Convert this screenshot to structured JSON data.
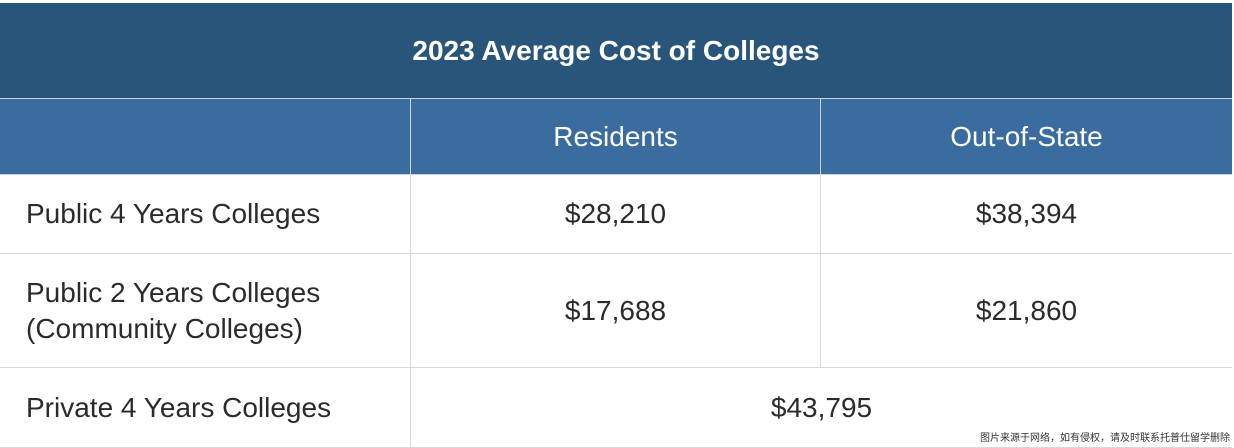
{
  "title": "2023 Average Cost of Colleges",
  "columns": [
    "",
    "Residents",
    "Out-of-State"
  ],
  "rows": [
    {
      "label_lines": [
        "Public 4 Years Colleges"
      ],
      "residents": "$28,210",
      "out_of_state": "$38,394"
    },
    {
      "label_lines": [
        "Public 2 Years Colleges",
        "(Community Colleges)"
      ],
      "residents": "$17,688",
      "out_of_state": "$21,860"
    },
    {
      "label_lines": [
        "Private 4 Years Colleges"
      ],
      "combined": "$43,795"
    }
  ],
  "watermark": "图片来源于网络，如有侵权，请及时联系托普仕留学删除",
  "colors": {
    "title_bg": "#285579",
    "header_bg": "#3a6c9f",
    "text": "#2b2b2b"
  }
}
